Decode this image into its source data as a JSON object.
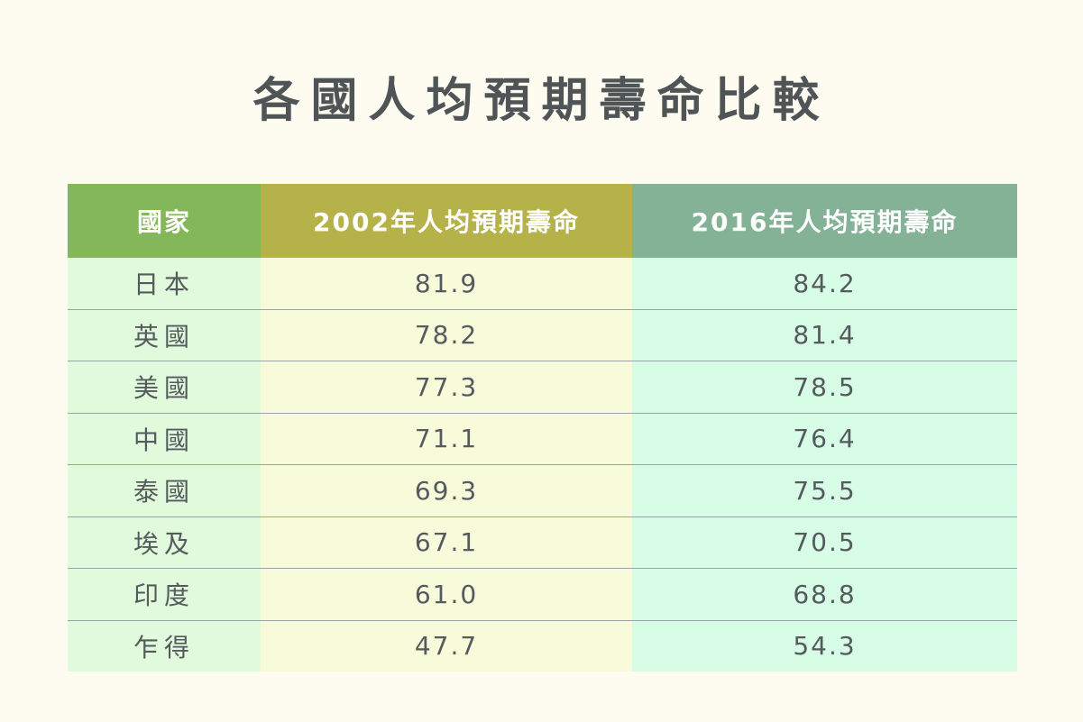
{
  "title": "各國人均預期壽命比較",
  "colors": {
    "background": "#fefcf0",
    "header_country": "#84b65a",
    "header_2002": "#b6b24a",
    "header_2016": "#84b296",
    "cell_country": "#e0fadb",
    "cell_2002": "#f7fbda",
    "cell_2016": "#d8fde6"
  },
  "chart_data": {
    "type": "table",
    "title": "各國人均預期壽命比較",
    "columns": [
      "國家",
      "2002年人均預期壽命",
      "2016年人均預期壽命"
    ],
    "rows": [
      [
        "日本",
        "81.9",
        "84.2"
      ],
      [
        "英國",
        "78.2",
        "81.4"
      ],
      [
        "美國",
        "77.3",
        "78.5"
      ],
      [
        "中國",
        "71.1",
        "76.4"
      ],
      [
        "泰國",
        "69.3",
        "75.5"
      ],
      [
        "埃及",
        "67.1",
        "70.5"
      ],
      [
        "印度",
        "61.0",
        "68.8"
      ],
      [
        "乍得",
        "47.7",
        "54.3"
      ]
    ]
  }
}
